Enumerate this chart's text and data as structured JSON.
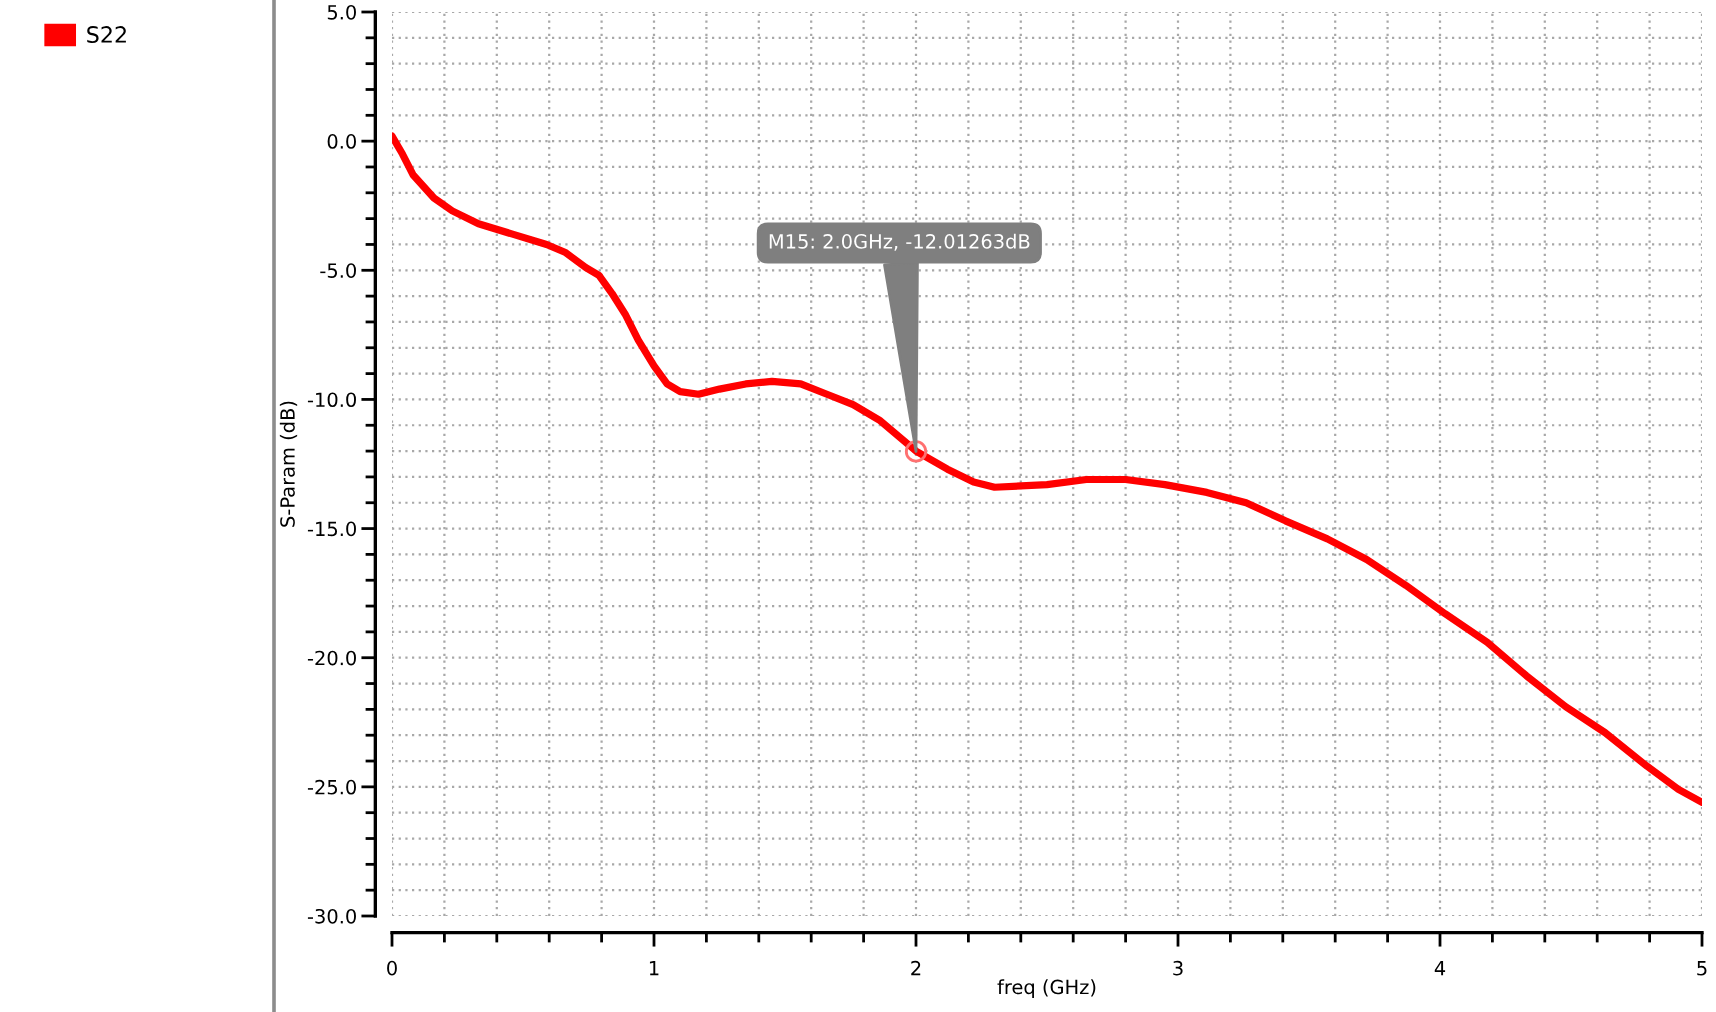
{
  "chart_data": {
    "type": "line",
    "xlabel": "freq (GHz)",
    "ylabel": "S-Param (dB)",
    "series": [
      {
        "name": "S22",
        "color": "#ff0000",
        "x": [
          0,
          0.04,
          0.08,
          0.16,
          0.23,
          0.33,
          0.46,
          0.59,
          0.66,
          0.74,
          0.79,
          0.84,
          0.89,
          0.94,
          1.0,
          1.05,
          1.1,
          1.17,
          1.25,
          1.35,
          1.45,
          1.56,
          1.66,
          1.76,
          1.86,
          2.0,
          2.12,
          2.22,
          2.3,
          2.5,
          2.65,
          2.8,
          2.95,
          3.11,
          3.26,
          3.41,
          3.57,
          3.72,
          3.87,
          4.02,
          4.18,
          4.33,
          4.48,
          4.63,
          4.79,
          4.91,
          5.0
        ],
        "values": [
          0.2,
          -0.5,
          -1.3,
          -2.2,
          -2.7,
          -3.2,
          -3.6,
          -4.0,
          -4.3,
          -4.9,
          -5.2,
          -5.9,
          -6.7,
          -7.7,
          -8.7,
          -9.4,
          -9.7,
          -9.8,
          -9.6,
          -9.4,
          -9.3,
          -9.4,
          -9.8,
          -10.2,
          -10.8,
          -12.0,
          -12.7,
          -13.2,
          -13.4,
          -13.3,
          -13.1,
          -13.1,
          -13.3,
          -13.6,
          -14.0,
          -14.7,
          -15.4,
          -16.2,
          -17.2,
          -18.3,
          -19.4,
          -20.7,
          -21.9,
          -22.9,
          -24.2,
          -25.1,
          -25.6
        ]
      }
    ],
    "xlim": [
      0,
      5
    ],
    "ylim": [
      -30,
      5
    ],
    "xticks": [
      0,
      {
        "value": 0.2,
        "label": null
      },
      {
        "value": 0.4,
        "label": null
      },
      {
        "value": 0.6,
        "label": null
      },
      {
        "value": 0.8,
        "label": null
      },
      1,
      {
        "value": 1.2,
        "label": null
      },
      {
        "value": 1.4,
        "label": null
      },
      {
        "value": 1.6,
        "label": null
      },
      {
        "value": 1.8,
        "label": null
      },
      2,
      {
        "value": 2.2,
        "label": null
      },
      {
        "value": 2.4,
        "label": null
      },
      {
        "value": 2.6,
        "label": null
      },
      {
        "value": 2.8,
        "label": null
      },
      3,
      {
        "value": 3.2,
        "label": null
      },
      {
        "value": 3.4,
        "label": null
      },
      {
        "value": 3.6,
        "label": null
      },
      {
        "value": 3.8,
        "label": null
      },
      4,
      {
        "value": 4.2,
        "label": null
      },
      {
        "value": 4.4,
        "label": null
      },
      {
        "value": 4.6,
        "label": null
      },
      {
        "value": 4.8,
        "label": null
      },
      5
    ],
    "yticks": [
      {
        "value": 5,
        "label": "5.0"
      },
      {
        "value": 4,
        "label": null
      },
      {
        "value": 3,
        "label": null
      },
      {
        "value": 2,
        "label": null
      },
      {
        "value": 1,
        "label": null
      },
      {
        "value": 0,
        "label": "0.0"
      },
      {
        "value": -1,
        "label": null
      },
      {
        "value": -2,
        "label": null
      },
      {
        "value": -3,
        "label": null
      },
      {
        "value": -4,
        "label": null
      },
      {
        "value": -5,
        "label": "-5.0"
      },
      {
        "value": -6,
        "label": null
      },
      {
        "value": -7,
        "label": null
      },
      {
        "value": -8,
        "label": null
      },
      {
        "value": -9,
        "label": null
      },
      {
        "value": -10,
        "label": "-10.0"
      },
      {
        "value": -11,
        "label": null
      },
      {
        "value": -12,
        "label": null
      },
      {
        "value": -13,
        "label": null
      },
      {
        "value": -14,
        "label": null
      },
      {
        "value": -15,
        "label": "-15.0"
      },
      {
        "value": -16,
        "label": null
      },
      {
        "value": -17,
        "label": null
      },
      {
        "value": -18,
        "label": null
      },
      {
        "value": -19,
        "label": null
      },
      {
        "value": -20,
        "label": "-20.0"
      },
      {
        "value": -21,
        "label": null
      },
      {
        "value": -22,
        "label": null
      },
      {
        "value": -23,
        "label": null
      },
      {
        "value": -24,
        "label": null
      },
      {
        "value": -25,
        "label": "-25.0"
      },
      {
        "value": -26,
        "label": null
      },
      {
        "value": -27,
        "label": null
      },
      {
        "value": -28,
        "label": null
      },
      {
        "value": -29,
        "label": null
      },
      {
        "value": -30,
        "label": "-30.0"
      }
    ],
    "grid": true,
    "legend": "top left",
    "line_style": "solid",
    "annotations": [
      {
        "text": "M15: 2.0GHz, -12.01263dB",
        "x": 2,
        "y": -12.01263
      }
    ]
  }
}
